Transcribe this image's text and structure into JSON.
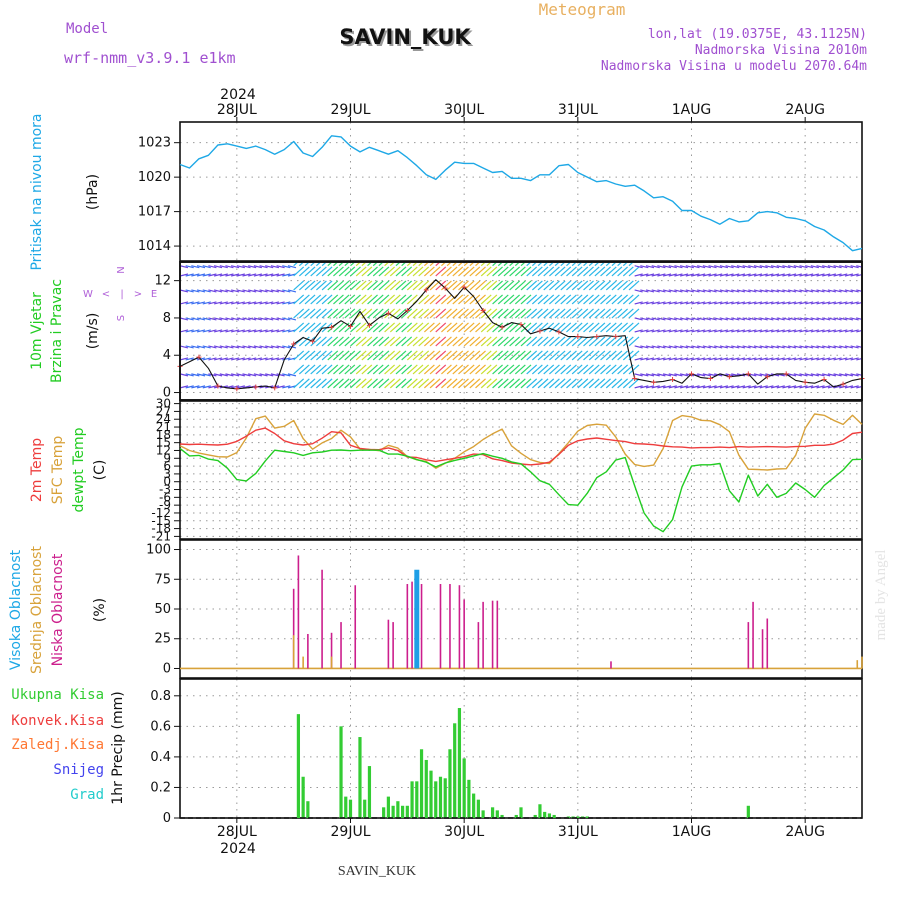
{
  "header": {
    "model_label": "Model",
    "model_name": "wrf-nmm_v3.9.1 e1km",
    "station": "SAVIN_KUK",
    "product": "Meteogram",
    "lonlat": "lon,lat (19.0375E, 43.1125N)",
    "altitude": "Nadmorska Visina 2010m",
    "model_altitude": "Nadmorska Visina u modelu 2070.64m",
    "year": "2024",
    "footer_station": "SAVIN_KUK",
    "watermark": "made by Angel"
  },
  "days": [
    "28JUL",
    "29JUL",
    "30JUL",
    "31JUL",
    "1AUG",
    "2AUG"
  ],
  "colors": {
    "pressure": "#1ea8e6",
    "temp2m": "#ee3d3d",
    "sfc": "#d8a23a",
    "dewpt": "#22cc22",
    "high_cloud": "#1e9ee6",
    "mid_cloud": "#d8a23a",
    "low_cloud": "#cc1e8c",
    "precip": "#33cc33",
    "convective": "#ee3d3d",
    "freezing": "#ff7733",
    "snow": "#4444ee",
    "hail": "#22cccc",
    "wind_label": "#22cc22",
    "dir_label": "#b060d8",
    "title_orange": "#e8b060",
    "header_purple": "#a050d0"
  },
  "panels": {
    "pressure": {
      "labels": [
        "Pritisak na nivou mora"
      ],
      "unit": "(hPa)",
      "yticks": [
        1014,
        1017,
        1020,
        1023
      ]
    },
    "wind": {
      "labels": [
        "10m Vjetar",
        "Brzina i Pravac"
      ],
      "unit": "(m/s)",
      "yticks": [
        0,
        4,
        8,
        12
      ],
      "direction_legend": [
        "W",
        "<",
        "|",
        ">",
        "E",
        "S",
        "N"
      ]
    },
    "temp": {
      "labels": [
        "2m Temp",
        "SFC Temp",
        "dewpt Temp"
      ],
      "unit": "(C)",
      "yticks": [
        30,
        27,
        24,
        21,
        18,
        15,
        12,
        9,
        6,
        3,
        0,
        -3,
        -6,
        -9,
        -12,
        -15,
        -18,
        -21
      ]
    },
    "cloud": {
      "labels": [
        "Visoka Oblacnost",
        "Srednja Oblacnost",
        "Niska Oblacnost"
      ],
      "unit": "(%)",
      "yticks": [
        0,
        25,
        50,
        75,
        100
      ]
    },
    "precip": {
      "labels": [
        "Ukupna Kisa",
        "Konvek.Kisa",
        "Zaledj.Kisa",
        "Snijeg",
        "Grad"
      ],
      "unit": "1hr Precip (mm)",
      "yticks": [
        0,
        0.2,
        0.4,
        0.6,
        0.8
      ]
    }
  },
  "chart_data": [
    {
      "type": "line",
      "title": "Pritisak na nivou mora",
      "ylabel": "(hPa)",
      "xunit": "hours since 27JUL 12UTC",
      "ylim": [
        1012.7,
        1024.8
      ],
      "series": [
        {
          "name": "Pritisak na nivou mora",
          "x": [
            0,
            2,
            4,
            6,
            8,
            10,
            12,
            14,
            16,
            18,
            20,
            22,
            24,
            26,
            28,
            30,
            32,
            34,
            36,
            38,
            40,
            42,
            44,
            46,
            48,
            50,
            52,
            54,
            56,
            58,
            60,
            62,
            64,
            66,
            68,
            70,
            72,
            74,
            76,
            78,
            80,
            82,
            84,
            86,
            88,
            90,
            92,
            94,
            96,
            98,
            100,
            102,
            104,
            106,
            108,
            110,
            112,
            114,
            116,
            118,
            120,
            122,
            124,
            126,
            128,
            130,
            132,
            134,
            136,
            138,
            140,
            142,
            144
          ],
          "values": [
            1021.1,
            1020.8,
            1021.6,
            1021.9,
            1022.8,
            1022.9,
            1022.7,
            1022.5,
            1022.7,
            1022.4,
            1022.0,
            1022.4,
            1023.1,
            1022.1,
            1021.8,
            1022.6,
            1023.6,
            1023.5,
            1022.7,
            1022.2,
            1022.6,
            1022.3,
            1022.0,
            1022.3,
            1021.7,
            1021.0,
            1020.2,
            1019.8,
            1020.6,
            1021.3,
            1021.2,
            1021.2,
            1020.8,
            1020.4,
            1020.5,
            1019.9,
            1019.9,
            1019.7,
            1020.2,
            1020.2,
            1021.0,
            1021.1,
            1020.4,
            1020.0,
            1019.6,
            1019.7,
            1019.4,
            1019.2,
            1019.3,
            1018.8,
            1018.2,
            1018.3,
            1017.9,
            1017.1,
            1017.1,
            1016.6,
            1016.3,
            1015.9,
            1016.4,
            1016.1,
            1016.2,
            1016.9,
            1017.0,
            1016.9,
            1016.5,
            1016.4,
            1016.2,
            1015.7,
            1015.4,
            1014.8,
            1014.3,
            1013.6,
            1013.8
          ]
        }
      ]
    },
    {
      "type": "line",
      "title": "10m Vjetar Brzina i Pravac",
      "ylabel": "(m/s)",
      "xunit": "hours since 27JUL 12UTC",
      "ylim": [
        -0.8,
        14.0
      ],
      "series": [
        {
          "name": "10m Vjetar",
          "x": [
            0,
            2,
            4,
            6,
            8,
            10,
            12,
            14,
            16,
            18,
            20,
            22,
            24,
            26,
            28,
            30,
            32,
            34,
            36,
            38,
            40,
            42,
            44,
            46,
            48,
            50,
            52,
            54,
            56,
            58,
            60,
            62,
            64,
            66,
            68,
            70,
            72,
            74,
            76,
            78,
            80,
            82,
            84,
            86,
            88,
            90,
            92,
            94,
            96,
            98,
            100,
            102,
            104,
            106,
            108,
            110,
            112,
            114,
            116,
            118,
            120,
            122,
            124,
            126,
            128,
            130,
            132,
            134,
            136,
            138,
            140,
            142,
            144
          ],
          "values": [
            2.8,
            3.3,
            3.8,
            2.6,
            0.7,
            0.5,
            0.4,
            0.5,
            0.6,
            0.7,
            0.5,
            3.5,
            5.2,
            5.9,
            5.5,
            6.9,
            7.0,
            7.7,
            7.1,
            8.7,
            7.2,
            8.0,
            8.5,
            7.9,
            8.8,
            9.8,
            11.0,
            12.1,
            11.2,
            10.1,
            11.3,
            10.3,
            8.8,
            7.5,
            7.0,
            7.5,
            7.3,
            6.3,
            6.6,
            6.9,
            6.5,
            6.0,
            6.0,
            5.9,
            6.0,
            6.1,
            6.0,
            6.1,
            1.5,
            1.3,
            1.1,
            1.2,
            1.4,
            1.0,
            2.0,
            1.6,
            1.5,
            2.0,
            1.7,
            1.8,
            2.0,
            0.9,
            1.7,
            2.0,
            2.0,
            1.3,
            1.1,
            1.0,
            1.4,
            0.6,
            0.9,
            1.3,
            1.5
          ]
        }
      ]
    },
    {
      "type": "line",
      "title": "2m Temp / SFC Temp / dewpt Temp",
      "ylabel": "(C)",
      "xunit": "hours since 27JUL 12UTC",
      "ylim": [
        -22,
        31
      ],
      "series": [
        {
          "name": "2m Temp",
          "x": [
            0,
            2,
            4,
            6,
            8,
            10,
            12,
            14,
            16,
            18,
            20,
            22,
            24,
            26,
            28,
            30,
            32,
            34,
            36,
            38,
            40,
            42,
            44,
            46,
            48,
            50,
            52,
            54,
            56,
            58,
            60,
            62,
            64,
            66,
            68,
            70,
            72,
            74,
            76,
            78,
            80,
            82,
            84,
            86,
            88,
            90,
            92,
            94,
            96,
            98,
            100,
            102,
            104,
            106,
            108,
            110,
            112,
            114,
            116,
            118,
            120,
            122,
            124,
            126,
            128,
            130,
            132,
            134,
            136,
            138,
            140,
            142,
            144
          ],
          "values": [
            14.5,
            14.3,
            14.4,
            14.2,
            14.1,
            14.4,
            15.5,
            17.5,
            19.8,
            20.6,
            18.5,
            15.7,
            14.6,
            14.1,
            14.6,
            16.7,
            19.2,
            18.8,
            14.0,
            12.8,
            12.4,
            12.3,
            13.0,
            12.0,
            9.5,
            9.3,
            8.4,
            7.8,
            8.4,
            9.0,
            9.6,
            10.6,
            10.4,
            8.8,
            8.1,
            7.2,
            6.8,
            6.5,
            6.8,
            7.5,
            10.5,
            14.0,
            15.7,
            16.4,
            16.8,
            16.3,
            15.8,
            15.4,
            14.6,
            14.5,
            14.2,
            13.7,
            13.4,
            13.3,
            13.0,
            13.1,
            13.1,
            13.3,
            13.1,
            13.5,
            13.3,
            13.4,
            13.5,
            13.4,
            13.3,
            13.5,
            13.6,
            14.0,
            14.0,
            14.5,
            16.0,
            18.5,
            19.0
          ]
        },
        {
          "name": "SFC Temp",
          "x": [
            0,
            2,
            4,
            6,
            8,
            10,
            12,
            14,
            16,
            18,
            20,
            22,
            24,
            26,
            28,
            30,
            32,
            34,
            36,
            38,
            40,
            42,
            44,
            46,
            48,
            50,
            52,
            54,
            56,
            58,
            60,
            62,
            64,
            66,
            68,
            70,
            72,
            74,
            76,
            78,
            80,
            82,
            84,
            86,
            88,
            90,
            92,
            94,
            96,
            98,
            100,
            102,
            104,
            106,
            108,
            110,
            112,
            114,
            116,
            118,
            120,
            122,
            124,
            126,
            128,
            130,
            132,
            134,
            136,
            138,
            140,
            142,
            144
          ],
          "values": [
            13.8,
            12.0,
            11.0,
            10.3,
            9.6,
            9.5,
            11.2,
            16.8,
            24.2,
            25.2,
            20.6,
            21.3,
            23.5,
            16.6,
            12.5,
            14.9,
            16.6,
            19.8,
            17.2,
            12.6,
            12.4,
            11.9,
            14.0,
            12.9,
            9.7,
            8.4,
            7.8,
            5.2,
            7.1,
            9.0,
            11.5,
            13.5,
            16.2,
            18.4,
            20.2,
            13.8,
            10.9,
            8.5,
            7.4,
            7.0,
            10.8,
            15.0,
            19.4,
            21.6,
            22.1,
            21.7,
            17.2,
            10.6,
            6.6,
            5.9,
            6.4,
            12.7,
            23.5,
            25.4,
            24.9,
            23.6,
            23.4,
            21.9,
            19.2,
            10.2,
            4.8,
            4.7,
            4.5,
            4.9,
            5.0,
            10.2,
            20.5,
            26.0,
            25.5,
            23.6,
            22.0,
            25.5,
            22.0
          ]
        },
        {
          "name": "dewpt Temp",
          "x": [
            0,
            2,
            4,
            6,
            8,
            10,
            12,
            14,
            16,
            18,
            20,
            22,
            24,
            26,
            28,
            30,
            32,
            34,
            36,
            38,
            40,
            42,
            44,
            46,
            48,
            50,
            52,
            54,
            56,
            58,
            60,
            62,
            64,
            66,
            68,
            70,
            72,
            74,
            76,
            78,
            80,
            82,
            84,
            86,
            88,
            90,
            92,
            94,
            96,
            98,
            100,
            102,
            104,
            106,
            108,
            110,
            112,
            114,
            116,
            118,
            120,
            122,
            124,
            126,
            128,
            130,
            132,
            134,
            136,
            138,
            140,
            142,
            144
          ],
          "values": [
            12.8,
            9.9,
            10.1,
            8.7,
            8.1,
            5.2,
            0.8,
            0.3,
            3.2,
            8.0,
            12.1,
            11.6,
            11.1,
            10.1,
            11.1,
            11.4,
            12.1,
            12.2,
            11.9,
            12.1,
            12.1,
            12.1,
            10.6,
            10.6,
            9.8,
            8.5,
            7.5,
            5.7,
            7.2,
            8.2,
            9.0,
            9.9,
            10.8,
            9.8,
            9.0,
            7.6,
            6.9,
            3.8,
            0.4,
            -1.0,
            -5.0,
            -8.8,
            -9.0,
            -4.4,
            1.6,
            3.8,
            8.3,
            9.3,
            -1.6,
            -12.0,
            -17.0,
            -19.2,
            -14.5,
            -2.0,
            6.0,
            6.5,
            6.5,
            7.0,
            -3.5,
            -7.8,
            2.5,
            -5.5,
            -1.0,
            -6.0,
            -4.5,
            -0.5,
            -3.0,
            -6.0,
            -1.5,
            1.5,
            4.5,
            8.5,
            8.6
          ]
        }
      ]
    },
    {
      "type": "bar",
      "title": "Visoka / Srednja / Niska Oblacnost",
      "ylabel": "(%)",
      "xunit": "hours since 27JUL 12UTC",
      "ylim": [
        -8,
        108
      ],
      "series": [
        {
          "name": "Niska Oblacnost",
          "x": [
            24,
            25,
            27,
            30,
            32,
            34,
            37,
            44,
            45,
            48,
            49,
            50,
            51,
            55,
            57,
            59,
            60,
            63,
            64,
            66,
            67,
            91
          ],
          "values": [
            67,
            95,
            29,
            83,
            30,
            39,
            70,
            41,
            39,
            71,
            73,
            79,
            71,
            71,
            71,
            70,
            58,
            39,
            56,
            57,
            57,
            6
          ]
        },
        {
          "name": "Srednja Oblacnost",
          "x": [
            24,
            26,
            32,
            143,
            144
          ],
          "values": [
            28,
            10,
            10,
            7,
            10
          ]
        },
        {
          "name": "Visoka Oblacnost",
          "x": [
            50
          ],
          "values": [
            83
          ]
        },
        {
          "name": "Niska Oblacnost 2",
          "x": [
            120,
            121,
            123,
            124
          ],
          "values": [
            39,
            56,
            33,
            42
          ]
        }
      ]
    },
    {
      "type": "bar",
      "title": "1hr Precip",
      "ylabel": "1hr Precip (mm)",
      "xunit": "hours since 27JUL 12UTC",
      "ylim": [
        0,
        0.91
      ],
      "series": [
        {
          "name": "Ukupna Kisa",
          "x": [
            25,
            26,
            27,
            34,
            35,
            36,
            38,
            39,
            40,
            43,
            44,
            45,
            46,
            47,
            48,
            49,
            50,
            51,
            52,
            53,
            54,
            55,
            56,
            57,
            58,
            59,
            60,
            61,
            62,
            63,
            64,
            66,
            67,
            68,
            71,
            72,
            75,
            76,
            77,
            78,
            79,
            82,
            83,
            84,
            85,
            86,
            120
          ],
          "values": [
            0.68,
            0.27,
            0.11,
            0.6,
            0.14,
            0.12,
            0.53,
            0.12,
            0.34,
            0.07,
            0.14,
            0.08,
            0.11,
            0.08,
            0.08,
            0.24,
            0.24,
            0.45,
            0.38,
            0.31,
            0.24,
            0.27,
            0.26,
            0.45,
            0.62,
            0.72,
            0.39,
            0.25,
            0.16,
            0.12,
            0.05,
            0.07,
            0.05,
            0.02,
            0.02,
            0.07,
            0.02,
            0.09,
            0.04,
            0.03,
            0.02,
            0.01,
            0.01,
            0.01,
            0.01,
            0.01,
            0.08
          ]
        }
      ]
    }
  ]
}
